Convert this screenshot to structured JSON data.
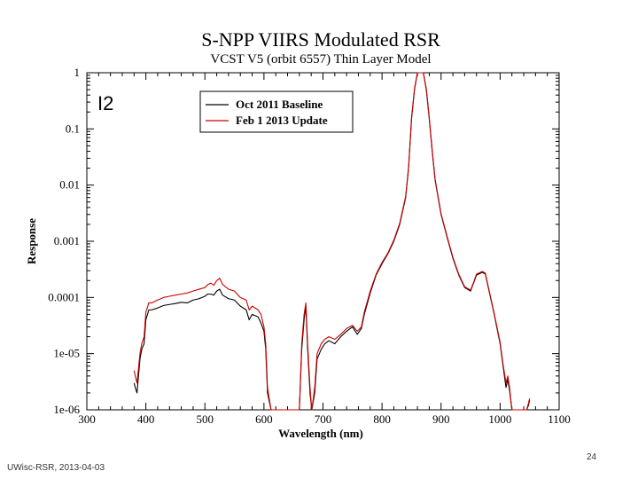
{
  "footer": {
    "source": "UWisc-RSR, 2013-04-03",
    "page_number": "24"
  },
  "chart_data": {
    "type": "line",
    "title": "S-NPP VIIRS Modulated RSR",
    "subtitle": "VCST V5 (orbit 6557) Thin Layer Model",
    "band_label": "I2",
    "xlabel": "Wavelength (nm)",
    "ylabel": "Response",
    "xlim": [
      300,
      1100
    ],
    "ylim": [
      1e-06,
      1
    ],
    "yscale": "log",
    "x_ticks": [
      300,
      400,
      500,
      600,
      700,
      800,
      900,
      1000,
      1100
    ],
    "x_tick_labels": [
      "300",
      "400",
      "500",
      "600",
      "700",
      "800",
      "900",
      "1000",
      "1100"
    ],
    "y_ticks": [
      1e-06,
      1e-05,
      0.0001,
      0.001,
      0.01,
      0.1,
      1
    ],
    "y_tick_labels": [
      "1e-06",
      "1e-05",
      "0.0001",
      "0.001",
      "0.01",
      "0.1",
      "1"
    ],
    "legend_position": "top-center",
    "series": [
      {
        "name": "Oct 2011 Baseline",
        "color": "#000000",
        "points": [
          [
            380,
            3e-06
          ],
          [
            382,
            2.5e-06
          ],
          [
            385,
            2e-06
          ],
          [
            390,
            8e-06
          ],
          [
            393,
            1.2e-05
          ],
          [
            397,
            1.5e-05
          ],
          [
            400,
            4e-05
          ],
          [
            405,
            6e-05
          ],
          [
            410,
            6e-05
          ],
          [
            420,
            6.5e-05
          ],
          [
            430,
            7.2e-05
          ],
          [
            440,
            7.5e-05
          ],
          [
            450,
            7.8e-05
          ],
          [
            460,
            8.2e-05
          ],
          [
            470,
            8e-05
          ],
          [
            480,
            9e-05
          ],
          [
            490,
            9.5e-05
          ],
          [
            500,
            0.000105
          ],
          [
            505,
            0.000115
          ],
          [
            510,
            0.000115
          ],
          [
            515,
            0.00011
          ],
          [
            520,
            0.00013
          ],
          [
            525,
            0.00014
          ],
          [
            530,
            0.00011
          ],
          [
            540,
            9.5e-05
          ],
          [
            550,
            9e-05
          ],
          [
            560,
            7e-05
          ],
          [
            570,
            6e-05
          ],
          [
            575,
            4e-05
          ],
          [
            580,
            5e-05
          ],
          [
            590,
            4.5e-05
          ],
          [
            595,
            3.5e-05
          ],
          [
            600,
            2.5e-05
          ],
          [
            603,
            1.2e-05
          ],
          [
            606,
            2e-06
          ],
          [
            612,
            8e-07
          ],
          [
            660,
            8e-07
          ],
          [
            664,
            1.2e-05
          ],
          [
            668,
            4e-05
          ],
          [
            671,
            7e-05
          ],
          [
            674,
            1.2e-05
          ],
          [
            678,
            2e-06
          ],
          [
            681,
            8e-07
          ],
          [
            686,
            2e-06
          ],
          [
            690,
            8e-06
          ],
          [
            697,
            1.2e-05
          ],
          [
            703,
            1.5e-05
          ],
          [
            710,
            1.7e-05
          ],
          [
            720,
            1.5e-05
          ],
          [
            730,
            2e-05
          ],
          [
            740,
            2.5e-05
          ],
          [
            750,
            3e-05
          ],
          [
            758,
            2.2e-05
          ],
          [
            765,
            2.8e-05
          ],
          [
            770,
            5e-05
          ],
          [
            780,
            0.00012
          ],
          [
            790,
            0.00025
          ],
          [
            800,
            0.0004
          ],
          [
            810,
            0.0006
          ],
          [
            820,
            0.001
          ],
          [
            830,
            0.002
          ],
          [
            840,
            0.006
          ],
          [
            845,
            0.02
          ],
          [
            850,
            0.15
          ],
          [
            855,
            0.5
          ],
          [
            860,
            1.0
          ],
          [
            870,
            1.0
          ],
          [
            875,
            0.5
          ],
          [
            880,
            0.15
          ],
          [
            885,
            0.04
          ],
          [
            890,
            0.012
          ],
          [
            900,
            0.003
          ],
          [
            910,
            0.0012
          ],
          [
            920,
            0.0005
          ],
          [
            930,
            0.00025
          ],
          [
            940,
            0.00015
          ],
          [
            950,
            0.00013
          ],
          [
            955,
            0.00018
          ],
          [
            960,
            0.00025
          ],
          [
            970,
            0.00028
          ],
          [
            975,
            0.00026
          ],
          [
            980,
            0.00015
          ],
          [
            990,
            5e-05
          ],
          [
            1000,
            1.5e-05
          ],
          [
            1005,
            6e-06
          ],
          [
            1010,
            2.5e-06
          ],
          [
            1013,
            3.5e-06
          ],
          [
            1016,
            2.2e-06
          ],
          [
            1020,
            8e-07
          ],
          [
            1045,
            8e-07
          ],
          [
            1048,
            1.2e-06
          ],
          [
            1050,
            1.5e-06
          ]
        ]
      },
      {
        "name": "Feb 1 2013 Update",
        "color": "#cc0000",
        "points": [
          [
            380,
            5e-06
          ],
          [
            382,
            4e-06
          ],
          [
            385,
            3e-06
          ],
          [
            390,
            1e-05
          ],
          [
            393,
            1.5e-05
          ],
          [
            397,
            2e-05
          ],
          [
            400,
            5.5e-05
          ],
          [
            405,
            8e-05
          ],
          [
            410,
            8e-05
          ],
          [
            420,
            9e-05
          ],
          [
            430,
            0.0001
          ],
          [
            440,
            0.000105
          ],
          [
            450,
            0.00011
          ],
          [
            460,
            0.000115
          ],
          [
            470,
            0.00012
          ],
          [
            480,
            0.00013
          ],
          [
            490,
            0.00014
          ],
          [
            500,
            0.00015
          ],
          [
            505,
            0.00017
          ],
          [
            510,
            0.00018
          ],
          [
            515,
            0.000165
          ],
          [
            520,
            0.0002
          ],
          [
            525,
            0.00022
          ],
          [
            530,
            0.00017
          ],
          [
            540,
            0.00014
          ],
          [
            550,
            0.00013
          ],
          [
            560,
            0.0001
          ],
          [
            570,
            9e-05
          ],
          [
            575,
            6e-05
          ],
          [
            580,
            7e-05
          ],
          [
            590,
            6e-05
          ],
          [
            595,
            5e-05
          ],
          [
            600,
            3e-05
          ],
          [
            603,
            1.5e-05
          ],
          [
            606,
            2.5e-06
          ],
          [
            612,
            8e-07
          ],
          [
            660,
            8e-07
          ],
          [
            664,
            1.5e-05
          ],
          [
            668,
            5e-05
          ],
          [
            671,
            8e-05
          ],
          [
            674,
            1.5e-05
          ],
          [
            678,
            2.5e-06
          ],
          [
            681,
            8e-07
          ],
          [
            686,
            2.5e-06
          ],
          [
            690,
            1e-05
          ],
          [
            697,
            1.5e-05
          ],
          [
            703,
            1.8e-05
          ],
          [
            710,
            2e-05
          ],
          [
            720,
            1.8e-05
          ],
          [
            730,
            2.2e-05
          ],
          [
            740,
            2.8e-05
          ],
          [
            750,
            3.2e-05
          ],
          [
            758,
            2.5e-05
          ],
          [
            765,
            3e-05
          ],
          [
            770,
            5.5e-05
          ],
          [
            780,
            0.00013
          ],
          [
            790,
            0.00026
          ],
          [
            800,
            0.00042
          ],
          [
            810,
            0.00062
          ],
          [
            820,
            0.00105
          ],
          [
            830,
            0.0021
          ],
          [
            840,
            0.0063
          ],
          [
            845,
            0.021
          ],
          [
            850,
            0.16
          ],
          [
            855,
            0.52
          ],
          [
            860,
            1.0
          ],
          [
            870,
            1.0
          ],
          [
            875,
            0.52
          ],
          [
            880,
            0.16
          ],
          [
            885,
            0.042
          ],
          [
            890,
            0.0125
          ],
          [
            900,
            0.0031
          ],
          [
            910,
            0.00125
          ],
          [
            920,
            0.00052
          ],
          [
            930,
            0.00026
          ],
          [
            940,
            0.000155
          ],
          [
            950,
            0.000135
          ],
          [
            955,
            0.000185
          ],
          [
            960,
            0.00026
          ],
          [
            970,
            0.00029
          ],
          [
            975,
            0.00027
          ],
          [
            980,
            0.000155
          ],
          [
            990,
            5.2e-05
          ],
          [
            1000,
            1.6e-05
          ],
          [
            1005,
            6.5e-06
          ],
          [
            1010,
            3e-06
          ],
          [
            1013,
            4e-06
          ],
          [
            1016,
            2.5e-06
          ],
          [
            1020,
            8e-07
          ],
          [
            1045,
            8e-07
          ],
          [
            1048,
            1.3e-06
          ],
          [
            1050,
            1.6e-06
          ]
        ]
      }
    ]
  }
}
